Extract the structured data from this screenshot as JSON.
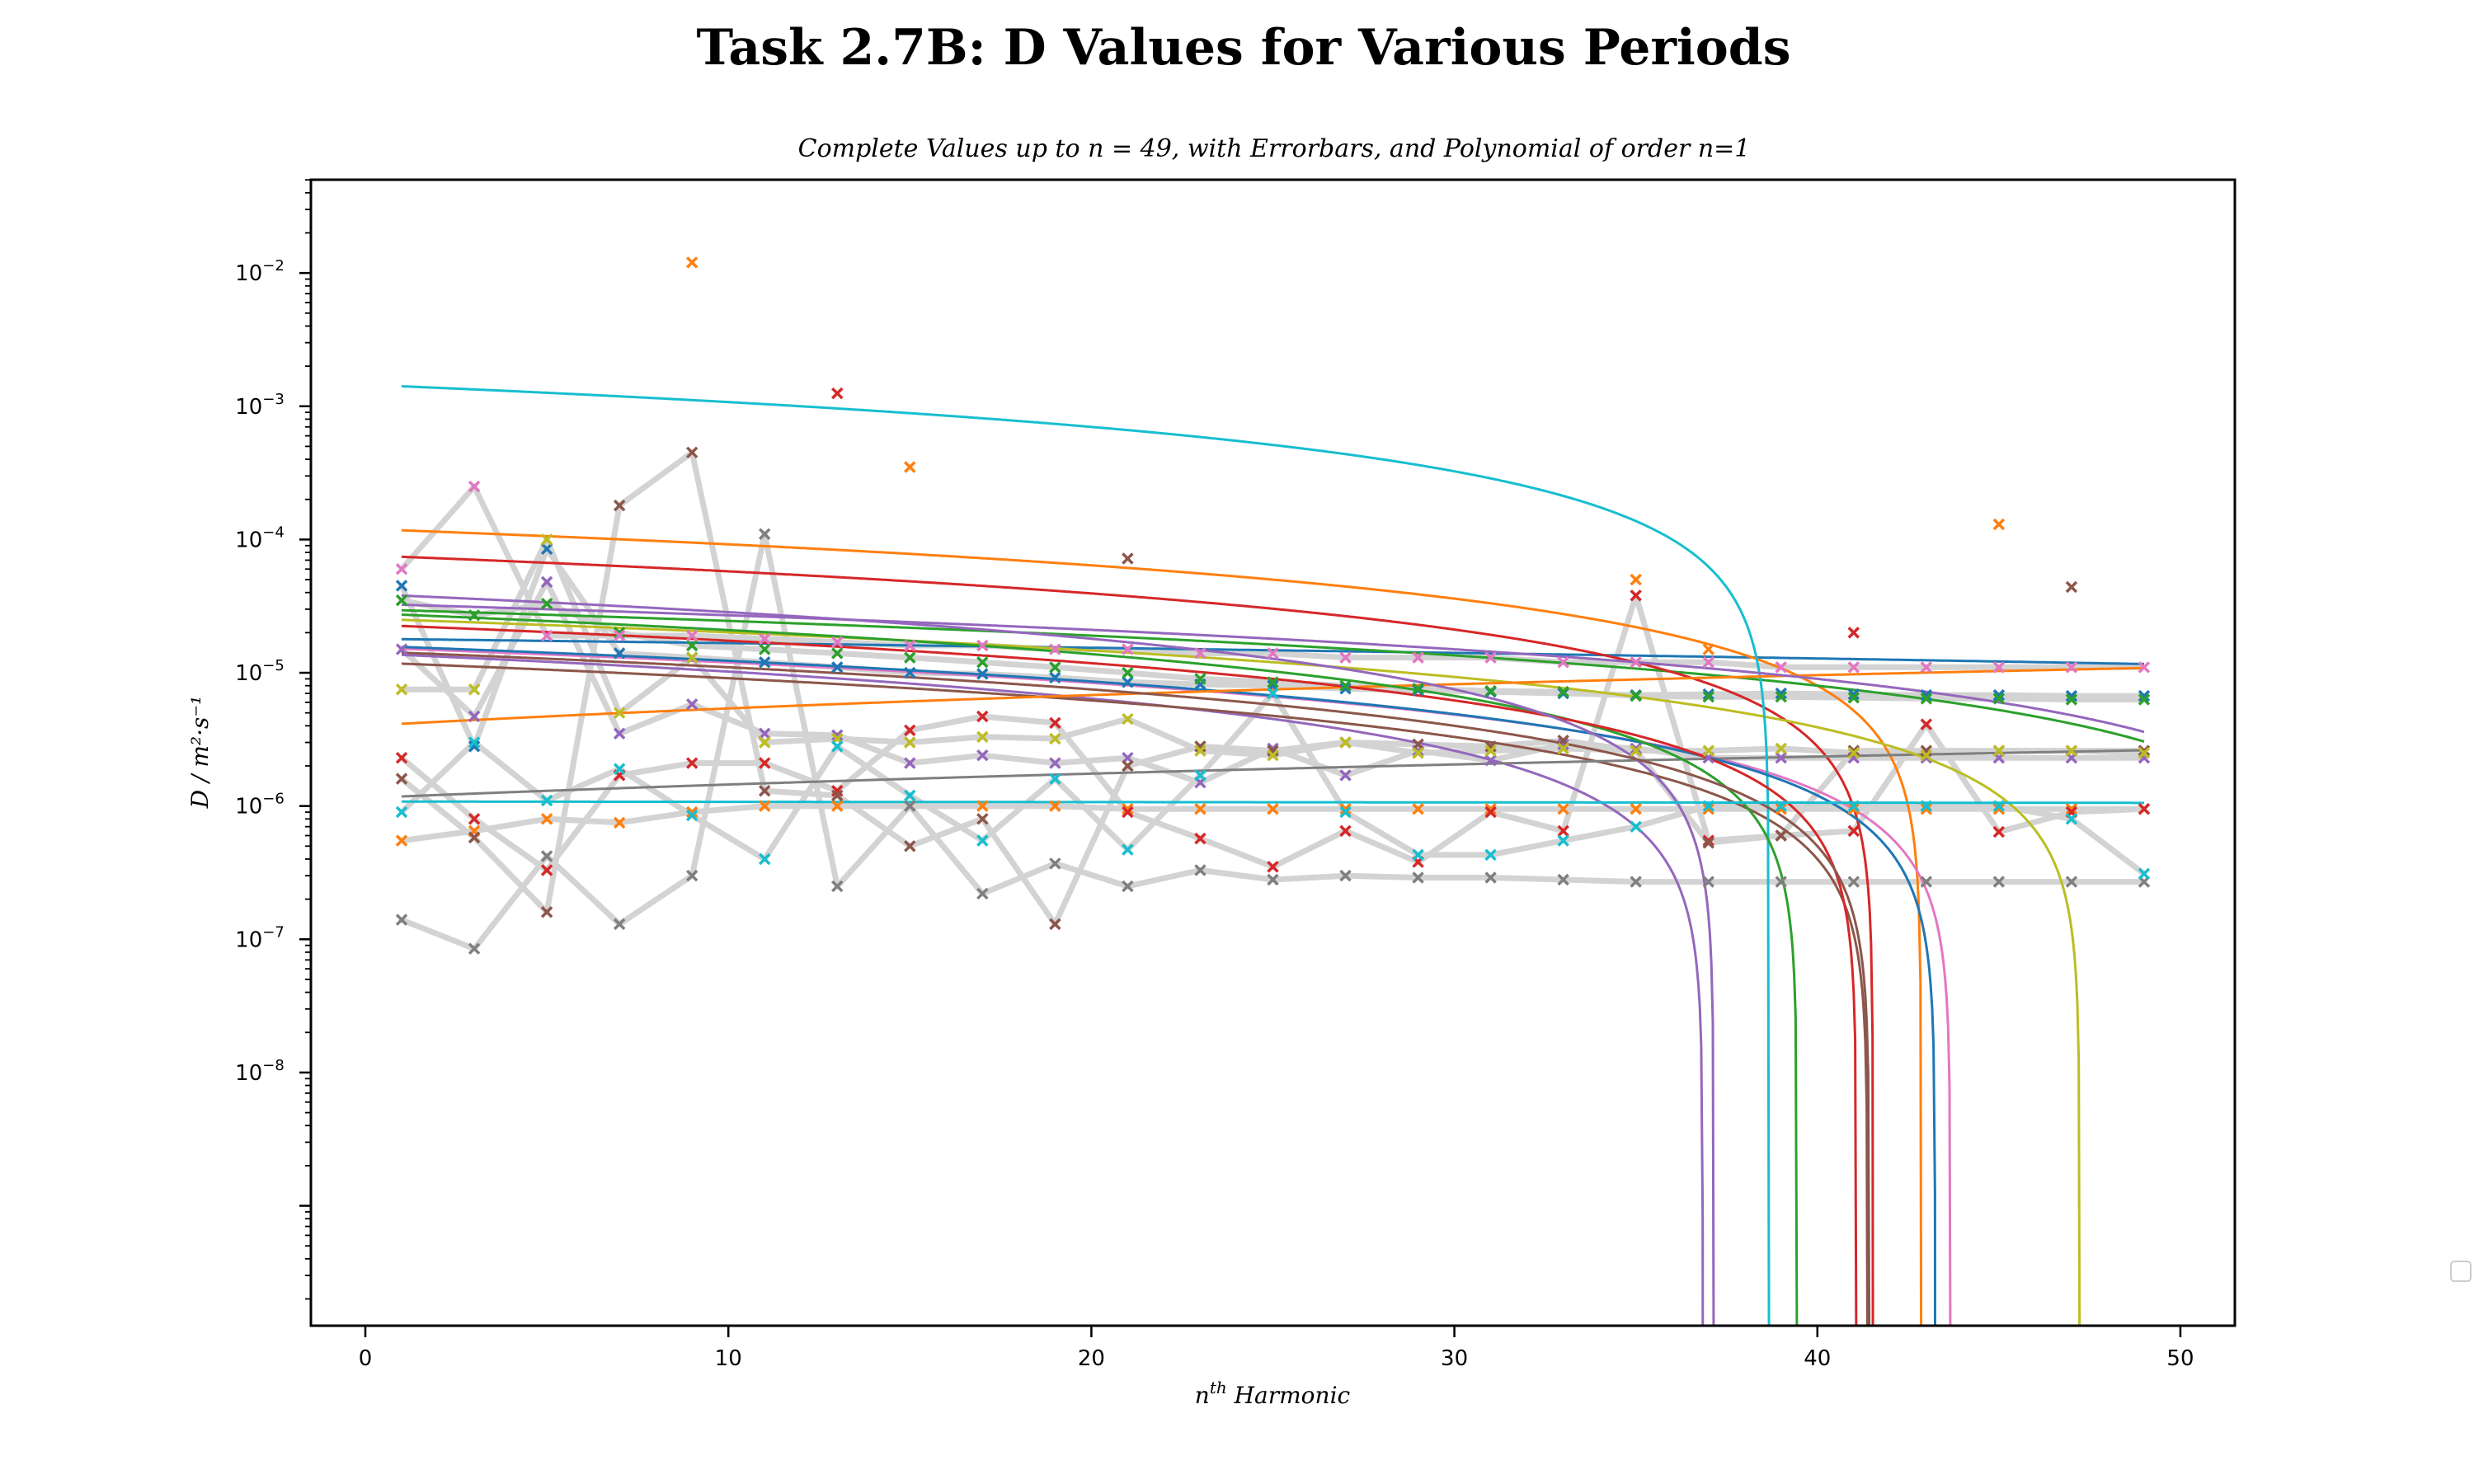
{
  "chart_data": {
    "type": "scatter",
    "title": "Task 2.7B: D Values for Various Periods",
    "subtitle": "Complete Values up to n = 49, with Errorbars, and Polynomial of order n=1",
    "xlabel_base": "n",
    "xlabel_sup": "th",
    "xlabel_rest": " Harmonic",
    "ylabel": "D / m²·s⁻¹",
    "xlim": [
      -1.5,
      51.5
    ],
    "ylim_log10": [
      -9.9,
      -1.3
    ],
    "yscale": "log",
    "grid": false,
    "legend": "right, empty",
    "x_ticks": [
      0,
      10,
      20,
      30,
      40,
      50
    ],
    "y_ticks": [
      {
        "base": "10",
        "exp": "−2",
        "log": -2
      },
      {
        "base": "10",
        "exp": "−3",
        "log": -3
      },
      {
        "base": "10",
        "exp": "−4",
        "log": -4
      },
      {
        "base": "10",
        "exp": "−5",
        "log": -5
      },
      {
        "base": "10",
        "exp": "−6",
        "log": -6
      },
      {
        "base": "10",
        "exp": "−7",
        "log": -7
      },
      {
        "base": "10",
        "exp": "−8",
        "log": -8
      }
    ],
    "x": [
      1,
      3,
      5,
      7,
      9,
      11,
      13,
      15,
      17,
      19,
      21,
      23,
      25,
      27,
      29,
      31,
      33,
      35,
      37,
      39,
      41,
      43,
      45,
      47,
      49
    ],
    "data_line_color": "#d3d3d3",
    "series": [
      {
        "color": "#1f77b4",
        "values": [
          4.5e-05,
          2.8e-06,
          8.5e-05,
          1.4e-05,
          1.3e-05,
          1.2e-05,
          1.1e-05,
          1e-05,
          9.8e-06,
          9.2e-06,
          8.5e-06,
          8.2e-06,
          8e-06,
          7.6e-06,
          7.4e-06,
          7.2e-06,
          7e-06,
          6.8e-06,
          6.9e-06,
          7e-06,
          6.9e-06,
          6.8e-06,
          6.8e-06,
          6.7e-06,
          6.7e-06
        ],
        "fit": [
          1.8e-05,
          -1.3e-07
        ]
      },
      {
        "color": "#ff7f0e",
        "values": [
          5.5e-07,
          6.5e-07,
          8e-07,
          7.5e-07,
          9e-07,
          1e-06,
          1e-06,
          1e-06,
          1e-06,
          1e-06,
          9.5e-07,
          9.5e-07,
          9.5e-07,
          9.5e-07,
          9.5e-07,
          9.5e-07,
          9.5e-07,
          9.5e-07,
          9.5e-07,
          9.5e-07,
          9.5e-07,
          9.5e-07,
          9.5e-07,
          9.5e-07,
          9.5e-07
        ],
        "fit": [
          0.00012,
          -2.8e-06
        ]
      },
      {
        "color": "#2ca02c",
        "values": [
          3.5e-05,
          2.7e-05,
          3.3e-05,
          2e-05,
          1.6e-05,
          1.5e-05,
          1.4e-05,
          1.3e-05,
          1.2e-05,
          1.1e-05,
          1e-05,
          9e-06,
          8.5e-06,
          8e-06,
          7.6e-06,
          7.3e-06,
          7.2e-06,
          6.7e-06,
          6.6e-06,
          6.6e-06,
          6.5e-06,
          6.4e-06,
          6.4e-06,
          6.3e-06,
          6.3e-06
        ],
        "fit": [
          3e-05,
          -5.5e-07
        ]
      },
      {
        "color": "#d62728",
        "values": [
          2.3e-06,
          8e-07,
          3.3e-07,
          1.7e-06,
          2.1e-06,
          2.1e-06,
          1.3e-06,
          3.7e-06,
          4.7e-06,
          4.2e-06,
          9e-07,
          5.7e-07,
          3.5e-07,
          6.5e-07,
          3.8e-07,
          9e-07,
          6.5e-07,
          3.8e-05,
          5.5e-07,
          6e-07,
          6.5e-07,
          4.1e-06,
          6.4e-07,
          9e-07,
          9.5e-07
        ],
        "fit": [
          7.6e-05,
          -1.83e-06
        ]
      },
      {
        "color": "#9467bd",
        "values": [
          1.5e-05,
          4.7e-06,
          4.8e-05,
          3.5e-06,
          5.8e-06,
          3.5e-06,
          3.4e-06,
          2.1e-06,
          2.4e-06,
          2.1e-06,
          2.3e-06,
          1.5e-06,
          2.7e-06,
          1.7e-06,
          2.6e-06,
          2.2e-06,
          2.9e-06,
          2.7e-06,
          2.3e-06,
          2.3e-06,
          2.3e-06,
          2.3e-06,
          2.3e-06,
          2.3e-06,
          2.3e-06
        ],
        "fit": [
          1.4e-05,
          -3.8e-07
        ]
      },
      {
        "color": "#8c564b",
        "values": [
          1.6e-06,
          5.8e-07,
          1.6e-07,
          0.00018,
          0.00045,
          1.3e-06,
          1.2e-06,
          5e-07,
          8e-07,
          1.3e-07,
          2e-06,
          2.8e-06,
          2.6e-06,
          3e-06,
          2.9e-06,
          2.8e-06,
          3.1e-06,
          2.6e-06,
          5.3e-07,
          6e-07,
          2.6e-06,
          2.6e-06,
          2.6e-06,
          2.6e-06,
          2.6e-06
        ],
        "fit": [
          1.2e-05,
          -2.9e-07
        ]
      },
      {
        "color": "#e377c2",
        "values": [
          6e-05,
          0.00025,
          1.9e-05,
          1.9e-05,
          1.9e-05,
          1.8e-05,
          1.7e-05,
          1.6e-05,
          1.6e-05,
          1.5e-05,
          1.5e-05,
          1.4e-05,
          1.4e-05,
          1.3e-05,
          1.3e-05,
          1.3e-05,
          1.2e-05,
          1.2e-05,
          1.2e-05,
          1.1e-05,
          1.1e-05,
          1.1e-05,
          1.1e-05,
          1.1e-05,
          1.1e-05
        ],
        "fit": [
          1.55e-05,
          -3.55e-07
        ]
      },
      {
        "color": "#7f7f7f",
        "values": [
          1.4e-07,
          8.5e-08,
          4.2e-07,
          1.3e-07,
          3e-07,
          0.00011,
          2.5e-07,
          1e-06,
          2.2e-07,
          3.7e-07,
          2.5e-07,
          3.3e-07,
          2.8e-07,
          3e-07,
          2.9e-07,
          2.9e-07,
          2.8e-07,
          2.7e-07,
          2.7e-07,
          2.7e-07,
          2.7e-07,
          2.7e-07,
          2.7e-07,
          2.7e-07,
          2.7e-07
        ],
        "fit": [
          1.15e-06,
          3e-08
        ]
      },
      {
        "color": "#bcbd22",
        "values": [
          7.5e-06,
          7.5e-06,
          0.0001,
          5e-06,
          1.3e-05,
          3e-06,
          3.2e-06,
          3e-06,
          3.3e-06,
          3.2e-06,
          4.5e-06,
          2.6e-06,
          2.4e-06,
          3e-06,
          2.5e-06,
          2.6e-06,
          2.7e-06,
          2.6e-06,
          2.6e-06,
          2.7e-06,
          2.5e-06,
          2.4e-06,
          2.6e-06,
          2.6e-06,
          2.5e-06
        ],
        "fit": [
          2.55e-05,
          -5.4e-07
        ]
      },
      {
        "color": "#17becf",
        "values": [
          9e-07,
          3e-06,
          1.1e-06,
          1.9e-06,
          8.5e-07,
          4e-07,
          2.8e-06,
          1.2e-06,
          5.5e-07,
          1.6e-06,
          4.7e-07,
          1.7e-06,
          7e-06,
          9e-07,
          4.3e-07,
          4.3e-07,
          5.5e-07,
          7e-07,
          1e-06,
          1e-06,
          1e-06,
          1e-06,
          1e-06,
          8e-07,
          3.1e-07
        ],
        "fit": [
          0.00145,
          -3.75e-05
        ]
      }
    ],
    "extra_fits": [
      {
        "color": "#1f77b4",
        "fit": [
          1.6e-05,
          -3.7e-07
        ]
      },
      {
        "color": "#ff7f0e",
        "fit": [
          4e-06,
          1.4e-07
        ]
      },
      {
        "color": "#2ca02c",
        "fit": [
          2.8e-05,
          -7.1e-07
        ]
      },
      {
        "color": "#d62728",
        "fit": [
          2.3e-05,
          -5.6e-07
        ]
      },
      {
        "color": "#9467bd",
        "fit": [
          3.9e-05,
          -1.05e-06
        ]
      },
      {
        "color": "#9467bd",
        "fit": [
          3.3e-05,
          -6e-07
        ]
      },
      {
        "color": "#8c564b",
        "fit": [
          1.45e-05,
          -3.5e-07
        ]
      },
      {
        "color": "#17becf",
        "fit": [
          1.08e-06,
          -5e-10
        ]
      }
    ],
    "highlight_points": [
      {
        "x": 9,
        "y": 0.012,
        "color": "#ff7f0e"
      },
      {
        "x": 13,
        "y": 0.00125,
        "color": "#d62728"
      },
      {
        "x": 15,
        "y": 0.00035,
        "color": "#ff7f0e"
      },
      {
        "x": 21,
        "y": 7.2e-05,
        "color": "#8c564b"
      },
      {
        "x": 35,
        "y": 5e-05,
        "color": "#ff7f0e"
      },
      {
        "x": 45,
        "y": 0.00013,
        "color": "#ff7f0e"
      },
      {
        "x": 47,
        "y": 4.4e-05,
        "color": "#8c564b"
      },
      {
        "x": 41,
        "y": 2e-05,
        "color": "#d62728"
      },
      {
        "x": 37,
        "y": 1.5e-05,
        "color": "#ff7f0e"
      }
    ]
  }
}
